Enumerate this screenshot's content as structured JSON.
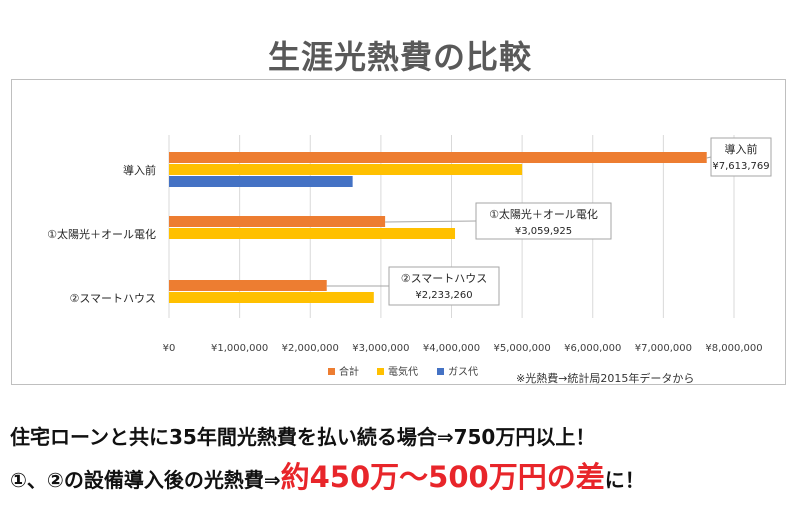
{
  "title": "生涯光熱費の比較",
  "note": "※光熱費→統計局2015年データから",
  "footer": {
    "line1": "住宅ローンと共に35年間光熱費を払い続る場合⇒750万円以上！",
    "line2_prefix": "①、②の設備導入後の光熱費⇒",
    "line2_emphasis": "約450万～500万円の差",
    "line2_suffix": "に！"
  },
  "colors": {
    "合計": "#ed7d31",
    "電気代": "#ffc000",
    "ガス代": "#4472c4"
  },
  "chart_data": {
    "type": "bar",
    "orientation": "horizontal",
    "categories": [
      "導入前",
      "①太陽光＋オール電化",
      "②スマートハウス"
    ],
    "series": [
      {
        "name": "合計",
        "values": [
          7613769,
          3059925,
          2233260
        ]
      },
      {
        "name": "電気代",
        "values": [
          5000000,
          4050000,
          2900000
        ]
      },
      {
        "name": "ガス代",
        "values": [
          2600000,
          null,
          null
        ]
      }
    ],
    "xlim": [
      0,
      8000000
    ],
    "xticks": [
      "¥0",
      "¥1,000,000",
      "¥2,000,000",
      "¥3,000,000",
      "¥4,000,000",
      "¥5,000,000",
      "¥6,000,000",
      "¥7,000,000",
      "¥8,000,000"
    ],
    "grid": true,
    "legend_position": "bottom",
    "callouts": [
      {
        "category": "導入前",
        "text": "導入前",
        "value": "¥7,613,769"
      },
      {
        "category": "①太陽光＋オール電化",
        "text": "①太陽光＋オール電化",
        "value": "¥3,059,925"
      },
      {
        "category": "②スマートハウス",
        "text": "②スマートハウス",
        "value": "¥2,233,260"
      }
    ]
  }
}
